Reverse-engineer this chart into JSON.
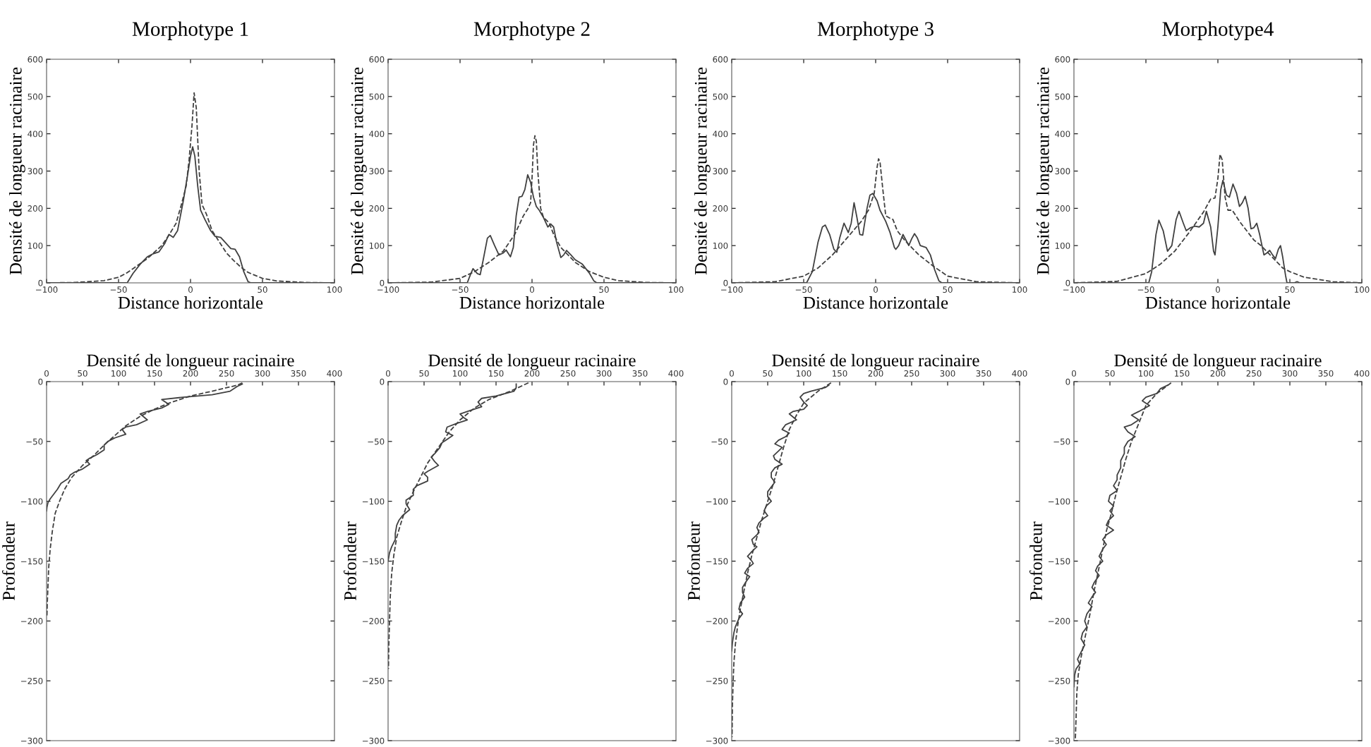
{
  "chart_data": [
    {
      "type": "line",
      "title": "Morphotype 1",
      "xlabel": "Distance horizontale",
      "ylabel": "Densité de longueur racinaire",
      "xlim": [
        -100,
        100
      ],
      "xticks": [
        -100,
        -50,
        0,
        50,
        100
      ],
      "ylim": [
        0,
        600
      ],
      "yticks": [
        0,
        100,
        200,
        300,
        400,
        500,
        600
      ],
      "series": [
        {
          "color": "#404040",
          "line_style": "solid",
          "x": [
            -100,
            -44,
            -40,
            -35,
            -30,
            -26,
            -22,
            -18,
            -15,
            -12,
            -9,
            -5,
            -2,
            0,
            1.5,
            3,
            5,
            7,
            10,
            14,
            17,
            21,
            25,
            28,
            31,
            34,
            37,
            40,
            42,
            100
          ],
          "values": [
            0,
            0,
            25,
            50,
            70,
            78,
            83,
            105,
            130,
            122,
            140,
            220,
            290,
            340,
            365,
            340,
            260,
            195,
            170,
            140,
            125,
            122,
            105,
            92,
            90,
            70,
            30,
            3,
            0,
            0
          ]
        },
        {
          "color": "#404040",
          "line_style": "dashed",
          "x": [
            -100,
            -80,
            -60,
            -50,
            -45,
            -40,
            -30,
            -20,
            -15,
            -10,
            -6,
            -3,
            -1,
            1,
            2.5,
            4,
            6,
            8,
            11,
            15,
            20,
            25,
            30,
            35,
            40,
            50,
            60,
            80,
            100
          ],
          "values": [
            0,
            1,
            6,
            15,
            25,
            38,
            65,
            100,
            128,
            160,
            215,
            260,
            330,
            420,
            510,
            470,
            300,
            210,
            185,
            140,
            110,
            80,
            60,
            42,
            28,
            12,
            5,
            1,
            0
          ]
        }
      ]
    },
    {
      "type": "line",
      "title": "Morphotype 2",
      "xlabel": "Distance horizontale",
      "ylabel": "Densité de longueur racinaire",
      "xlim": [
        -100,
        100
      ],
      "xticks": [
        -100,
        -50,
        0,
        50,
        100
      ],
      "ylim": [
        0,
        600
      ],
      "yticks": [
        0,
        100,
        200,
        300,
        400,
        500,
        600
      ],
      "series": [
        {
          "color": "#404040",
          "line_style": "solid",
          "x": [
            -100,
            -45,
            -43,
            -41,
            -38,
            -36,
            -34,
            -31,
            -29,
            -26,
            -23,
            -20,
            -18,
            -15,
            -13,
            -11,
            -9,
            -7,
            -5,
            -3,
            -1,
            1,
            3,
            5,
            8,
            11,
            13,
            15,
            17,
            20,
            22,
            24,
            27,
            30,
            35,
            40,
            43,
            45,
            100
          ],
          "values": [
            0,
            0,
            20,
            38,
            25,
            22,
            60,
            120,
            127,
            100,
            75,
            80,
            88,
            70,
            95,
            180,
            230,
            232,
            250,
            290,
            270,
            230,
            205,
            195,
            175,
            150,
            158,
            150,
            110,
            68,
            75,
            87,
            75,
            62,
            50,
            25,
            5,
            0,
            0
          ]
        },
        {
          "color": "#404040",
          "line_style": "dashed",
          "x": [
            -100,
            -70,
            -50,
            -40,
            -30,
            -20,
            -12,
            -6,
            -3,
            -1,
            0,
            1,
            2,
            3,
            4,
            6,
            8,
            10,
            12,
            15,
            20,
            25,
            30,
            40,
            50,
            60,
            80,
            100
          ],
          "values": [
            0,
            2,
            12,
            30,
            55,
            85,
            130,
            180,
            198,
            215,
            280,
            370,
            395,
            380,
            300,
            200,
            175,
            168,
            160,
            130,
            95,
            75,
            55,
            30,
            15,
            6,
            1,
            0
          ]
        }
      ]
    },
    {
      "type": "line",
      "title": "Morphotype 3",
      "xlabel": "Distance horizontale",
      "ylabel": "Densité de longueur racinaire",
      "xlim": [
        -100,
        100
      ],
      "xticks": [
        -100,
        -50,
        0,
        50,
        100
      ],
      "ylim": [
        0,
        600
      ],
      "yticks": [
        0,
        100,
        200,
        300,
        400,
        500,
        600
      ],
      "series": [
        {
          "color": "#404040",
          "line_style": "solid",
          "x": [
            -100,
            -48,
            -44,
            -40,
            -37,
            -35,
            -32,
            -29,
            -27,
            -25,
            -22,
            -19,
            -17,
            -15,
            -13,
            -11,
            -9,
            -6,
            -4,
            -2,
            1,
            3,
            7,
            10,
            13,
            14,
            16,
            19,
            21,
            23,
            25,
            27,
            29,
            31,
            35,
            38,
            41,
            44,
            46,
            100
          ],
          "values": [
            0,
            0,
            30,
            110,
            150,
            155,
            130,
            90,
            82,
            120,
            160,
            135,
            160,
            215,
            175,
            130,
            128,
            200,
            235,
            240,
            220,
            195,
            165,
            135,
            95,
            90,
            100,
            130,
            115,
            100,
            118,
            132,
            120,
            100,
            95,
            75,
            35,
            5,
            0,
            0
          ]
        },
        {
          "color": "#404040",
          "line_style": "dashed",
          "x": [
            -100,
            -70,
            -50,
            -40,
            -30,
            -20,
            -10,
            -5,
            -1,
            1,
            2,
            3,
            5,
            7,
            10,
            12,
            15,
            20,
            25,
            30,
            40,
            50,
            70,
            100
          ],
          "values": [
            0,
            3,
            18,
            40,
            75,
            120,
            165,
            195,
            240,
            310,
            333,
            325,
            250,
            180,
            173,
            170,
            140,
            115,
            95,
            75,
            45,
            18,
            3,
            0
          ]
        }
      ]
    },
    {
      "type": "line",
      "title": "Morphotype4",
      "xlabel": "Distance horizontale",
      "ylabel": "Densité de longueur racinaire",
      "xlim": [
        -100,
        100
      ],
      "xticks": [
        -100,
        -50,
        0,
        50,
        100
      ],
      "ylim": [
        0,
        600
      ],
      "yticks": [
        0,
        100,
        200,
        300,
        400,
        500,
        600
      ],
      "series": [
        {
          "color": "#404040",
          "line_style": "solid",
          "x": [
            -100,
            -48,
            -46,
            -43,
            -41,
            -38,
            -35,
            -32,
            -29,
            -27,
            -24,
            -22,
            -19,
            -16,
            -13,
            -10,
            -8,
            -5,
            -3,
            -2,
            0,
            2,
            3.5,
            6,
            8,
            10.5,
            13,
            15,
            17,
            19,
            21,
            23,
            25,
            27,
            29,
            32,
            34,
            36,
            38,
            40,
            42,
            43.5,
            45,
            47,
            48,
            53,
            55,
            57,
            100
          ],
          "values": [
            0,
            0,
            30,
            130,
            168,
            140,
            85,
            100,
            170,
            192,
            160,
            140,
            148,
            152,
            150,
            160,
            192,
            150,
            85,
            75,
            150,
            250,
            275,
            235,
            230,
            265,
            240,
            205,
            215,
            232,
            200,
            145,
            148,
            160,
            130,
            75,
            80,
            87,
            75,
            65,
            90,
            100,
            70,
            20,
            0,
            0,
            3,
            0,
            0
          ]
        },
        {
          "color": "#404040",
          "line_style": "dashed",
          "x": [
            -100,
            -70,
            -50,
            -40,
            -30,
            -20,
            -10,
            -5,
            -2,
            0,
            1.5,
            3,
            5,
            7,
            10,
            15,
            20,
            25,
            30,
            40,
            45,
            50,
            60,
            80,
            100
          ],
          "values": [
            0,
            4,
            25,
            50,
            85,
            135,
            190,
            225,
            228,
            280,
            345,
            330,
            230,
            195,
            195,
            165,
            140,
            115,
            100,
            60,
            40,
            30,
            15,
            3,
            0
          ]
        }
      ]
    },
    {
      "type": "line",
      "xlabel": "Densité de longueur racinaire",
      "ylabel": "Profondeur",
      "xlim": [
        0,
        400
      ],
      "xticks": [
        0,
        50,
        100,
        150,
        200,
        250,
        300,
        350,
        400
      ],
      "ylim": [
        -300,
        0
      ],
      "yticks": [
        -300,
        -250,
        -200,
        -150,
        -100,
        -50,
        0
      ],
      "series": [
        {
          "color": "#404040",
          "line_style": "solid",
          "x": [
            272,
            265,
            255,
            230,
            190,
            160,
            170,
            160,
            140,
            130,
            140,
            125,
            110,
            105,
            110,
            95,
            85,
            80,
            80,
            70,
            60,
            55,
            60,
            50,
            38,
            33,
            30,
            20,
            15,
            5,
            2,
            0.5,
            0
          ],
          "values": [
            -2,
            -4,
            -8,
            -11,
            -13,
            -15,
            -19,
            -22,
            -25,
            -27,
            -32,
            -36,
            -38,
            -40,
            -44,
            -47,
            -50,
            -53,
            -57,
            -61,
            -64,
            -66,
            -69,
            -73,
            -76,
            -78,
            -81,
            -85,
            -90,
            -98,
            -101,
            -105,
            -108
          ]
        },
        {
          "color": "#404040",
          "line_style": "dashed",
          "x": [
            272,
            265,
            230,
            200,
            170,
            150,
            130,
            110,
            95,
            80,
            65,
            50,
            35,
            25,
            18,
            12,
            8,
            5,
            3,
            2,
            1,
            0.5
          ],
          "values": [
            -1,
            -3,
            -8,
            -12,
            -18,
            -23,
            -29,
            -37,
            -45,
            -53,
            -62,
            -70,
            -80,
            -90,
            -100,
            -110,
            -125,
            -140,
            -155,
            -170,
            -185,
            -197
          ]
        }
      ]
    },
    {
      "type": "line",
      "xlabel": "Densité de longueur racinaire",
      "ylabel": "Profondeur",
      "xlim": [
        0,
        400
      ],
      "xticks": [
        0,
        50,
        100,
        150,
        200,
        250,
        300,
        350,
        400
      ],
      "ylim": [
        -300,
        0
      ],
      "yticks": [
        -300,
        -250,
        -200,
        -150,
        -100,
        -50,
        0
      ],
      "series": [
        {
          "color": "#404040",
          "line_style": "solid",
          "x": [
            178,
            178,
            175,
            150,
            130,
            125,
            130,
            115,
            100,
            105,
            110,
            95,
            82,
            80,
            90,
            80,
            75,
            72,
            65,
            60,
            65,
            70,
            55,
            50,
            55,
            55,
            40,
            35,
            35,
            25,
            25,
            30,
            20,
            15,
            12,
            10,
            10,
            5,
            2,
            0
          ],
          "values": [
            -2,
            -5,
            -8,
            -12,
            -14,
            -17,
            -21,
            -24,
            -27,
            -30,
            -32,
            -35,
            -38,
            -42,
            -45,
            -49,
            -51,
            -55,
            -60,
            -63,
            -67,
            -70,
            -75,
            -77,
            -80,
            -83,
            -87,
            -90,
            -95,
            -99,
            -102,
            -107,
            -112,
            -116,
            -120,
            -127,
            -132,
            -138,
            -143,
            -150
          ]
        },
        {
          "color": "#404040",
          "line_style": "dashed",
          "x": [
            195,
            170,
            140,
            120,
            100,
            85,
            70,
            55,
            45,
            35,
            25,
            18,
            12,
            8,
            5,
            3,
            2,
            1,
            0.5
          ],
          "values": [
            -1,
            -8,
            -15,
            -22,
            -32,
            -42,
            -55,
            -68,
            -80,
            -92,
            -105,
            -118,
            -130,
            -145,
            -160,
            -180,
            -200,
            -220,
            -240
          ]
        }
      ]
    },
    {
      "type": "line",
      "xlabel": "Densité de longueur racinaire",
      "ylabel": "Profondeur",
      "xlim": [
        0,
        400
      ],
      "xticks": [
        0,
        50,
        100,
        150,
        200,
        250,
        300,
        350,
        400
      ],
      "ylim": [
        -300,
        0
      ],
      "yticks": [
        -300,
        -250,
        -200,
        -150,
        -100,
        -50,
        0
      ],
      "series": [
        {
          "color": "#404040",
          "line_style": "solid",
          "x": [
            135,
            130,
            110,
            100,
            95,
            100,
            105,
            100,
            85,
            80,
            90,
            75,
            70,
            80,
            75,
            65,
            60,
            70,
            65,
            58,
            60,
            70,
            60,
            55,
            55,
            60,
            55,
            50,
            50,
            55,
            48,
            45,
            50,
            45,
            38,
            35,
            38,
            35,
            28,
            30,
            35,
            28,
            22,
            28,
            30,
            22,
            18,
            25,
            20,
            15,
            15,
            18,
            12,
            10,
            15,
            10,
            5,
            3,
            1,
            0
          ],
          "values": [
            -3,
            -5,
            -8,
            -10,
            -13,
            -17,
            -20,
            -23,
            -25,
            -27,
            -32,
            -36,
            -40,
            -43,
            -46,
            -49,
            -52,
            -55,
            -58,
            -62,
            -65,
            -69,
            -72,
            -76,
            -80,
            -84,
            -88,
            -92,
            -96,
            -100,
            -104,
            -108,
            -112,
            -114,
            -118,
            -122,
            -126,
            -128,
            -132,
            -136,
            -138,
            -142,
            -146,
            -150,
            -152,
            -156,
            -160,
            -163,
            -167,
            -172,
            -176,
            -180,
            -185,
            -190,
            -194,
            -198,
            -205,
            -210,
            -218,
            -225
          ]
        },
        {
          "color": "#404040",
          "line_style": "dashed",
          "x": [
            138,
            120,
            100,
            90,
            80,
            72,
            65,
            58,
            50,
            42,
            35,
            28,
            22,
            17,
            12,
            8,
            5,
            3,
            2,
            1,
            0.5
          ],
          "values": [
            -1,
            -8,
            -18,
            -28,
            -40,
            -55,
            -70,
            -85,
            -100,
            -115,
            -130,
            -145,
            -160,
            -175,
            -190,
            -205,
            -220,
            -235,
            -250,
            -270,
            -297
          ]
        }
      ]
    },
    {
      "type": "line",
      "xlabel": "Densité de longueur racinaire",
      "ylabel": "Profondeur",
      "xlim": [
        0,
        400
      ],
      "xticks": [
        0,
        50,
        100,
        150,
        200,
        250,
        300,
        350,
        400
      ],
      "ylim": [
        -300,
        0
      ],
      "yticks": [
        -300,
        -250,
        -200,
        -150,
        -100,
        -50,
        0
      ],
      "series": [
        {
          "color": "#404040",
          "line_style": "solid",
          "x": [
            130,
            120,
            115,
            100,
            95,
            105,
            90,
            80,
            90,
            80,
            70,
            75,
            85,
            75,
            70,
            70,
            65,
            65,
            60,
            60,
            55,
            60,
            50,
            48,
            55,
            50,
            55,
            48,
            45,
            55,
            45,
            40,
            45,
            40,
            35,
            40,
            33,
            30,
            35,
            28,
            25,
            30,
            25,
            20,
            25,
            18,
            15,
            18,
            12,
            10,
            15,
            10,
            5,
            8,
            3,
            1,
            0
          ],
          "values": [
            -3,
            -6,
            -10,
            -13,
            -16,
            -20,
            -25,
            -28,
            -32,
            -36,
            -38,
            -42,
            -46,
            -50,
            -55,
            -60,
            -66,
            -72,
            -78,
            -82,
            -87,
            -91,
            -95,
            -100,
            -104,
            -108,
            -112,
            -116,
            -120,
            -124,
            -128,
            -132,
            -136,
            -140,
            -146,
            -150,
            -154,
            -158,
            -162,
            -168,
            -172,
            -176,
            -180,
            -185,
            -188,
            -194,
            -200,
            -205,
            -210,
            -215,
            -220,
            -226,
            -232,
            -236,
            -240,
            -245,
            -255
          ]
        },
        {
          "color": "#404040",
          "line_style": "dashed",
          "x": [
            135,
            115,
            100,
            90,
            80,
            72,
            65,
            58,
            52,
            45,
            40,
            35,
            28,
            22,
            15,
            10,
            6,
            4,
            3,
            2
          ],
          "values": [
            -1,
            -10,
            -20,
            -35,
            -50,
            -65,
            -80,
            -95,
            -110,
            -125,
            -140,
            -155,
            -175,
            -195,
            -215,
            -230,
            -245,
            -260,
            -280,
            -298
          ]
        }
      ]
    }
  ]
}
